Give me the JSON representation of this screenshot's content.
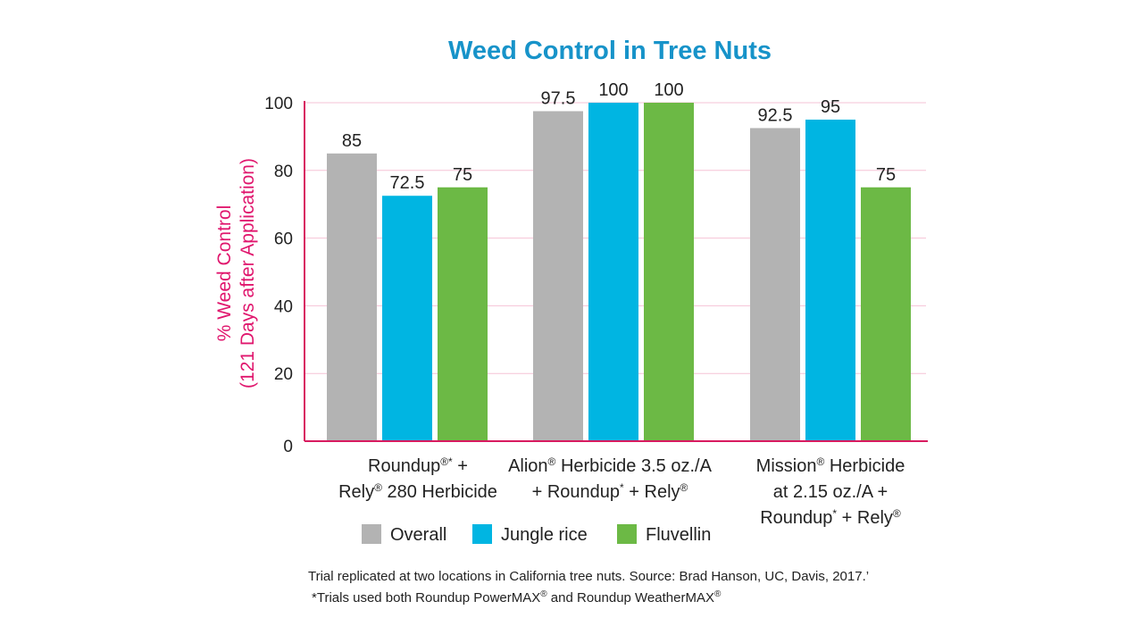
{
  "chart_data": {
    "type": "bar",
    "title": "Weed Control in Tree Nuts",
    "ylabel_lines": [
      "% Weed Control",
      "(121 Days after Application)"
    ],
    "xlabel": "",
    "ylim": [
      0,
      100
    ],
    "yticks": [
      0,
      20,
      40,
      60,
      80,
      100
    ],
    "grid": true,
    "categories": [
      "Roundup®* + Rely® 280 Herbicide",
      "Alion® Herbicide 3.5 oz./A + Roundup* + Rely®",
      "Mission® Herbicide at 2.15 oz./A + Roundup* + Rely®"
    ],
    "category_lines": [
      [
        "Roundup®* +",
        "Rely® 280 Herbicide"
      ],
      [
        "Alion® Herbicide 3.5 oz./A",
        "+ Roundup* + Rely®"
      ],
      [
        "Mission® Herbicide",
        "at 2.15 oz./A +",
        "Roundup* + Rely®"
      ]
    ],
    "series": [
      {
        "name": "Overall",
        "values": [
          85,
          97.5,
          92.5
        ],
        "labels": [
          "85",
          "97.5",
          "92.5"
        ],
        "color": "#b3b3b3"
      },
      {
        "name": "Jungle rice",
        "values": [
          72.5,
          100,
          95
        ],
        "labels": [
          "72.5",
          "100",
          "95"
        ],
        "color": "#00b5e2"
      },
      {
        "name": "Fluvellin",
        "values": [
          75,
          100,
          75
        ],
        "labels": [
          "75",
          "100",
          "75"
        ],
        "color": "#6cb945"
      }
    ],
    "legend_position": "bottom"
  },
  "colors": {
    "title": "#1793c9",
    "ylabel": "#e0166d",
    "axis": "#d81b60",
    "grid": "#f6c3d6"
  },
  "footnotes": {
    "line1": "Trial replicated at two locations in California tree nuts. Source: Brad Hanson, UC, Davis, 2017.’",
    "line2": "*Trials used both Roundup PowerMAX® and Roundup WeatherMAX®"
  }
}
